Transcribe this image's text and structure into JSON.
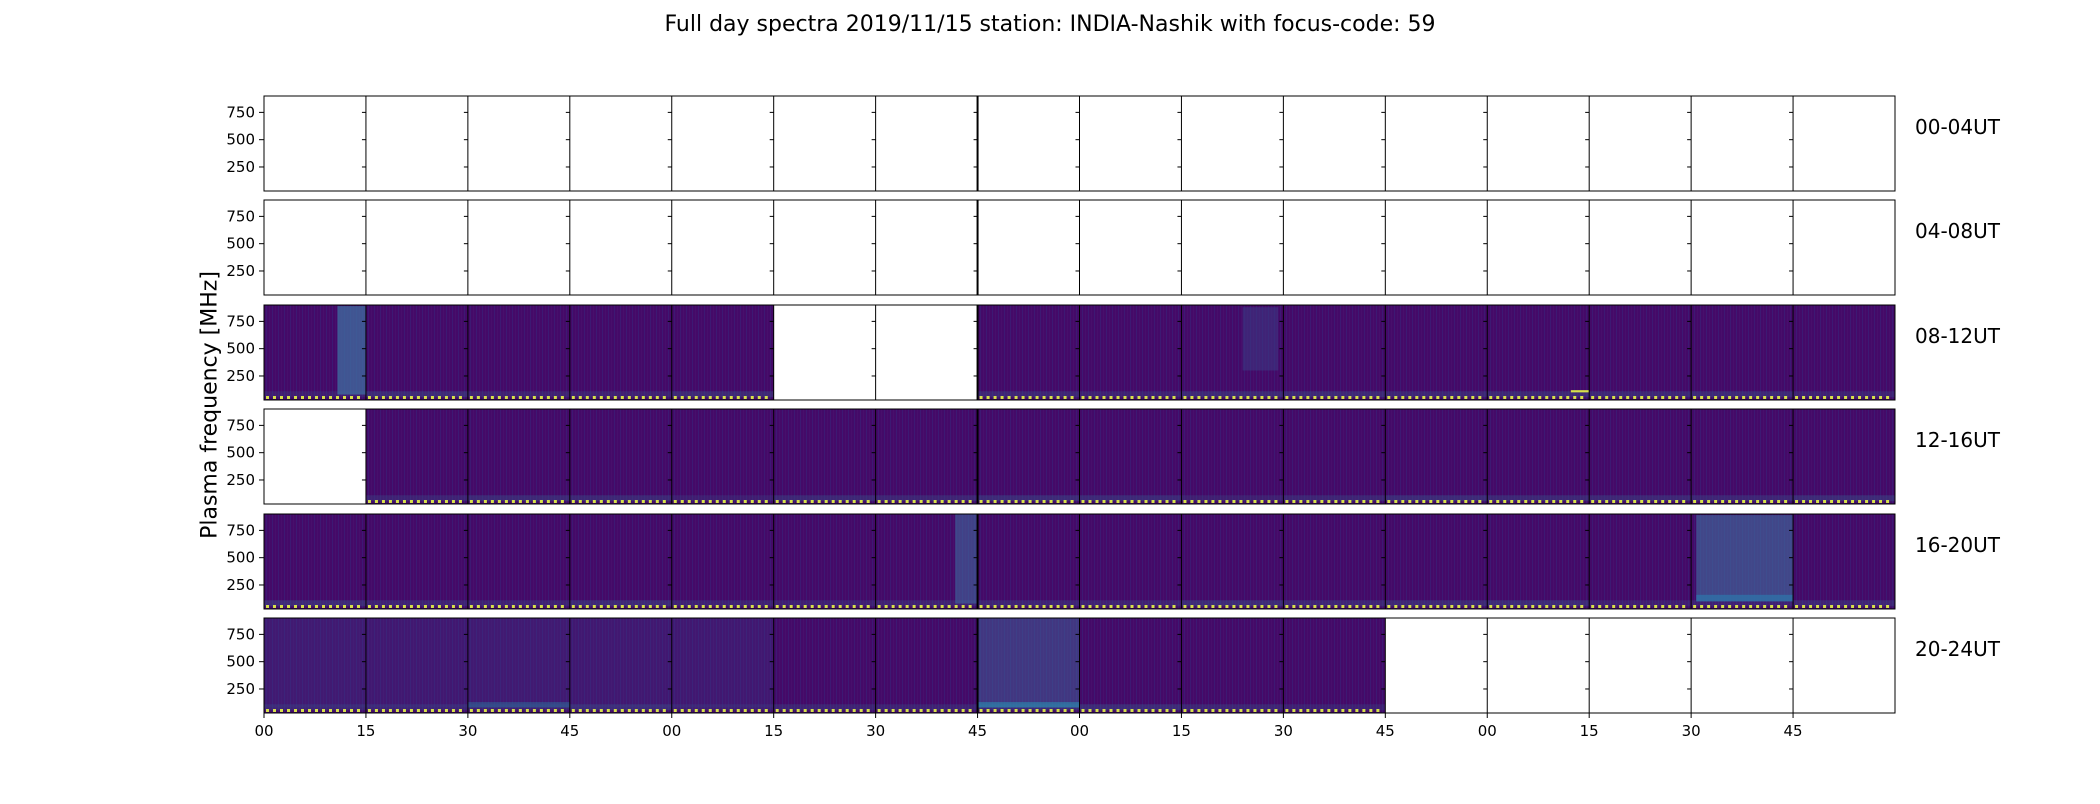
{
  "chart_data": {
    "type": "heatmap",
    "title": "Full day spectra 2019/11/15 station: INDIA-Nashik with focus-code: 59",
    "xlabel": "",
    "ylabel": "Plasma frequency [MHz]",
    "y_ticks": [
      250,
      500,
      750
    ],
    "x_ticks": [
      "00",
      "15",
      "30",
      "45",
      "00",
      "15",
      "30",
      "45",
      "00",
      "15",
      "30",
      "45",
      "00",
      "15",
      "30",
      "45"
    ],
    "colormap": "viridis",
    "row_labels": [
      "00-04UT",
      "04-08UT",
      "08-12UT",
      "12-16UT",
      "16-20UT",
      "20-24UT"
    ],
    "panels_per_row": 16,
    "panel_minutes": 15,
    "panel_data_present": [
      [
        0,
        0,
        0,
        0,
        0,
        0,
        0,
        0,
        0,
        0,
        0,
        0,
        0,
        0,
        0,
        0
      ],
      [
        0,
        0,
        0,
        0,
        0,
        0,
        0,
        0,
        0,
        0,
        0,
        0,
        0,
        0,
        0,
        0
      ],
      [
        1,
        1,
        1,
        1,
        1,
        0,
        0,
        1,
        1,
        1,
        1,
        1,
        1,
        1,
        1,
        1
      ],
      [
        0,
        1,
        1,
        1,
        1,
        1,
        1,
        1,
        1,
        1,
        1,
        1,
        1,
        1,
        1,
        1
      ],
      [
        1,
        1,
        1,
        1,
        1,
        1,
        1,
        1,
        1,
        1,
        1,
        1,
        1,
        1,
        1,
        1
      ],
      [
        1,
        1,
        1,
        1,
        1,
        1,
        1,
        1,
        1,
        1,
        1,
        0,
        0,
        0,
        0,
        0
      ]
    ],
    "grid": false
  },
  "colors": {
    "background_low": "#440a68",
    "background_mid": "#3b1f78",
    "enhanced": "#3f6fa0",
    "bright": "#d7e24a",
    "empty_panel": "#ffffff",
    "frame": "#000000"
  }
}
